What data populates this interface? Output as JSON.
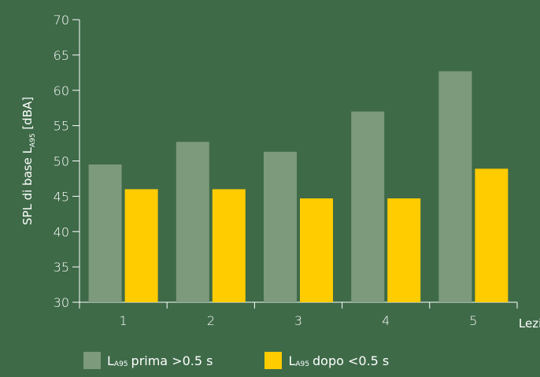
{
  "colors": {
    "background": "#3e6a48",
    "before": "#7d9a7c",
    "after": "#ffcc00",
    "axis": "#ffffff"
  },
  "chart_data": {
    "type": "bar",
    "categories": [
      "1",
      "2",
      "3",
      "4",
      "5"
    ],
    "series": [
      {
        "name": "LA95 prima >0.5 s",
        "values": [
          49.5,
          52.7,
          51.3,
          57.0,
          62.7
        ]
      },
      {
        "name": "LA95 dopo <0.5 s",
        "values": [
          46.0,
          46.0,
          44.7,
          44.7,
          48.9
        ]
      }
    ],
    "ylim": [
      30,
      70
    ],
    "yticks": [
      "30",
      "35",
      "40",
      "45",
      "50",
      "55",
      "60",
      "65",
      "70"
    ],
    "ylabel_prefix": "SPL di base L",
    "ylabel_sub": "A95",
    "ylabel_suffix": "[dBA]",
    "xlabel": "Lezioni",
    "grid": false,
    "legend_position": "bottom"
  },
  "legend": [
    {
      "prefix": "L",
      "sub": "A95",
      "text": "prima >0.5 s"
    },
    {
      "prefix": "L",
      "sub": "A95",
      "text": "dopo <0.5 s"
    }
  ]
}
